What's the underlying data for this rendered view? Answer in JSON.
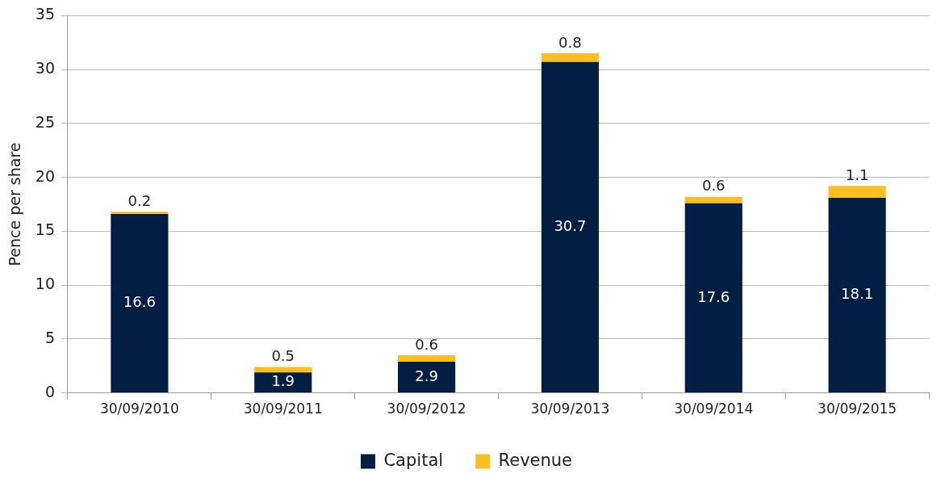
{
  "chart_data": {
    "type": "bar",
    "ylabel": "Pence per share",
    "categories": [
      "30/09/2010",
      "30/09/2011",
      "30/09/2012",
      "30/09/2013",
      "30/09/2014",
      "30/09/2015"
    ],
    "series": [
      {
        "name": "Capital",
        "color": "#021e42",
        "values": [
          16.6,
          1.9,
          2.9,
          30.7,
          17.6,
          18.1
        ]
      },
      {
        "name": "Revenue",
        "color": "#fbbf24",
        "values": [
          0.2,
          0.5,
          0.6,
          0.8,
          0.6,
          1.1
        ]
      }
    ],
    "stacked": true,
    "ylim": [
      0,
      35
    ],
    "yticks": [
      0,
      5,
      10,
      15,
      20,
      25,
      30,
      35
    ],
    "grid": "y",
    "legend": "bottom",
    "data_labels": true
  }
}
